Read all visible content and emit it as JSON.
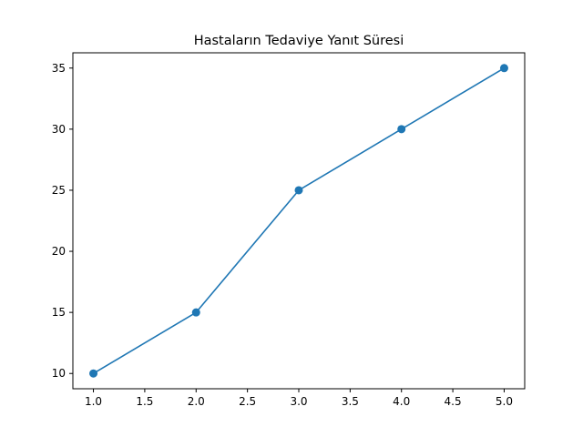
{
  "chart_data": {
    "type": "line",
    "title": "Hastaların Tedaviye Yanıt Süresi",
    "xlabel": "",
    "ylabel": "",
    "x": [
      1,
      2,
      3,
      4,
      5
    ],
    "series": [
      {
        "values": [
          10,
          15,
          25,
          30,
          35
        ],
        "color": "#1f77b4",
        "marker": "circle"
      }
    ],
    "xlim": [
      0.8,
      5.2
    ],
    "ylim": [
      8.75,
      36.25
    ],
    "xticks": [
      "1.0",
      "1.5",
      "2.0",
      "2.5",
      "3.0",
      "3.5",
      "4.0",
      "4.5",
      "5.0"
    ],
    "yticks": [
      "10",
      "15",
      "20",
      "25",
      "30",
      "35"
    ],
    "grid": false,
    "legend": "none"
  }
}
